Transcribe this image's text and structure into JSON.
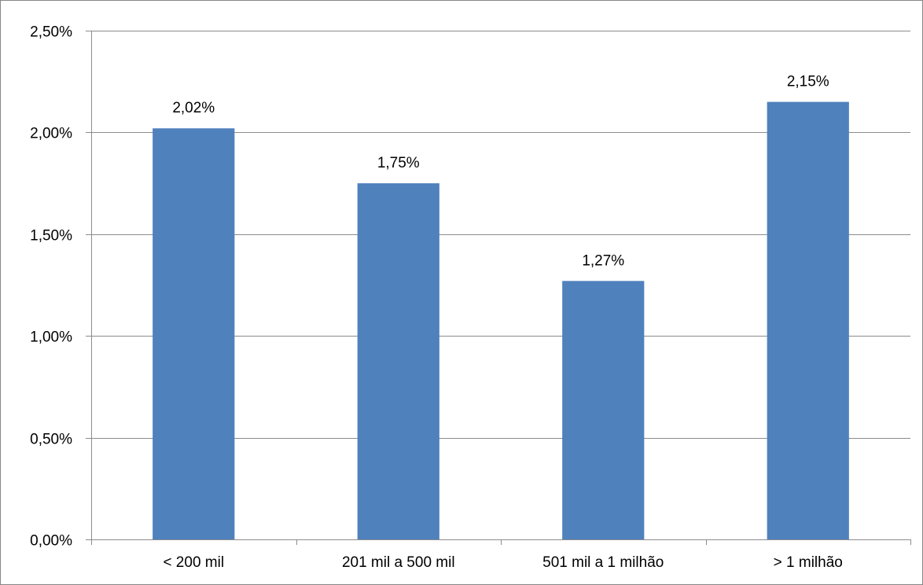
{
  "chart_data": {
    "type": "bar",
    "title": "",
    "xlabel": "",
    "ylabel": "",
    "categories": [
      "< 200 mil",
      "201 mil a 500 mil",
      "501 mil a 1 milhão",
      "> 1 milhão"
    ],
    "values": [
      2.02,
      1.75,
      1.27,
      2.15
    ],
    "data_labels": [
      "2,02%",
      "1,75%",
      "1,27%",
      "2,15%"
    ],
    "ylim": [
      0,
      2.5
    ],
    "yticks": [
      0,
      0.5,
      1.0,
      1.5,
      2.0,
      2.5
    ],
    "ytick_labels": [
      "0,00%",
      "0,50%",
      "1,00%",
      "1,50%",
      "2,00%",
      "2,50%"
    ],
    "grid": true,
    "legend": "none",
    "bar_color": "#4F81BD",
    "grid_color": "#8C8C8C"
  }
}
